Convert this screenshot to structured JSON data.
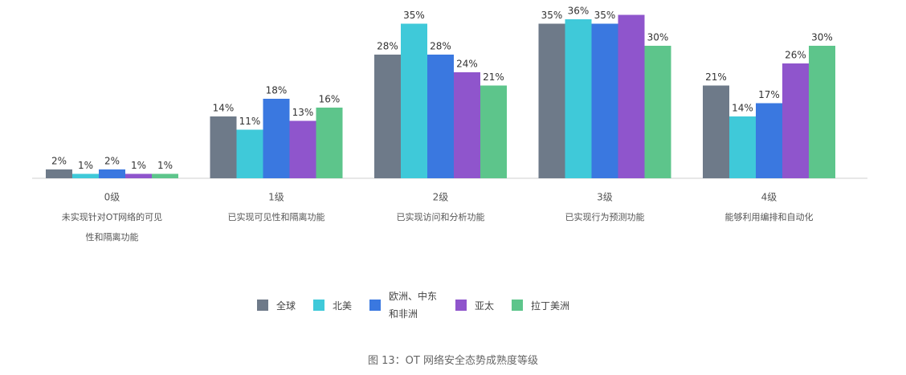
{
  "chart_data": {
    "type": "bar",
    "categories": [
      "0级",
      "1级",
      "2级",
      "3级",
      "4级"
    ],
    "category_descriptions": [
      [
        "未实现针对OT网络的可见",
        "性和隔离功能"
      ],
      [
        "已实现可见性和隔离功能"
      ],
      [
        "已实现访问和分析功能"
      ],
      [
        "已实现行为预测功能"
      ],
      [
        "能够利用编排和自动化"
      ]
    ],
    "series": [
      {
        "name": "全球",
        "color": "#6e7a89",
        "values": [
          2,
          14,
          28,
          35,
          21
        ],
        "value_labels": [
          "2%",
          "14%",
          "28%",
          "35%",
          "21%"
        ]
      },
      {
        "name": "北美",
        "color": "#3fc9d9",
        "values": [
          1,
          11,
          35,
          36,
          14
        ],
        "value_labels": [
          "1%",
          "11%",
          "35%",
          "36%",
          "14%"
        ]
      },
      {
        "name": "欧洲、中东和非洲",
        "color": "#3a78e0",
        "values": [
          2,
          18,
          28,
          35,
          17
        ],
        "value_labels": [
          "2%",
          "18%",
          "28%",
          "35%",
          "17%"
        ]
      },
      {
        "name": "亚太",
        "color": "#8f55cc",
        "values": [
          1,
          13,
          24,
          37,
          26
        ],
        "value_labels": [
          "1%",
          "13%",
          "24%",
          null,
          "26%"
        ]
      },
      {
        "name": "拉丁美洲",
        "color": "#5dc58b",
        "values": [
          1,
          16,
          21,
          30,
          30
        ],
        "value_labels": [
          "1%",
          "16%",
          "21%",
          "30%",
          "30%"
        ]
      }
    ],
    "caption": "图 13：OT 网络安全态势成熟度等级"
  }
}
